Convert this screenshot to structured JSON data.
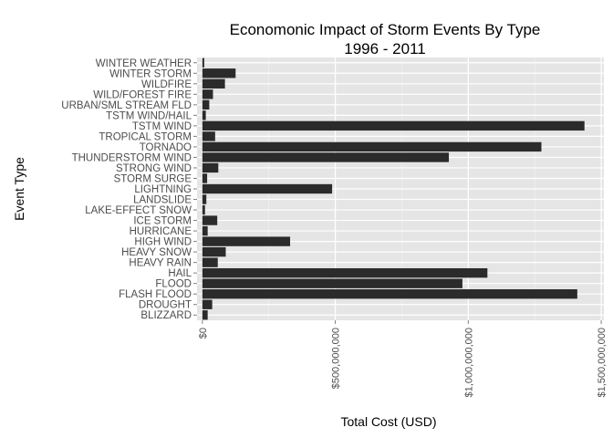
{
  "chart_data": {
    "type": "bar",
    "orientation": "horizontal",
    "title": "Economonic Impact of Storm Events By Type",
    "subtitle": "1996 - 2011",
    "xlabel": "Total Cost (USD)",
    "ylabel": "Event Type",
    "xlim": [
      -20000000,
      1510000000
    ],
    "x_ticks": [
      0,
      500000000,
      1000000000,
      1500000000
    ],
    "x_tick_labels": [
      "$0",
      "$500,000,000",
      "$1,000,000,000",
      "$1,500,000,000"
    ],
    "grid": true,
    "categories": [
      "BLIZZARD",
      "DROUGHT",
      "FLASH FLOOD",
      "FLOOD",
      "HAIL",
      "HEAVY RAIN",
      "HEAVY SNOW",
      "HIGH WIND",
      "HURRICANE",
      "ICE STORM",
      "LAKE-EFFECT SNOW",
      "LANDSLIDE",
      "LIGHTNING",
      "STORM SURGE",
      "STRONG WIND",
      "THUNDERSTORM WIND",
      "TORNADO",
      "TROPICAL STORM",
      "TSTM WIND",
      "TSTM WIND/HAIL",
      "URBAN/SML STREAM FLD",
      "WILD/FOREST FIRE",
      "WILDFIRE",
      "WINTER STORM",
      "WINTER WEATHER"
    ],
    "values": [
      20000000,
      37000000,
      1410000000,
      978000000,
      1072000000,
      58000000,
      88000000,
      330000000,
      20000000,
      56000000,
      10000000,
      15000000,
      488000000,
      18000000,
      60000000,
      927000000,
      1275000000,
      48000000,
      1437000000,
      13000000,
      26000000,
      40000000,
      85000000,
      125000000,
      7000000
    ],
    "colors": {
      "panel": "#e5e5e5",
      "grid_major": "#ffffff",
      "grid_minor": "#f2f2f2",
      "bar": "#2b2b2b"
    }
  }
}
